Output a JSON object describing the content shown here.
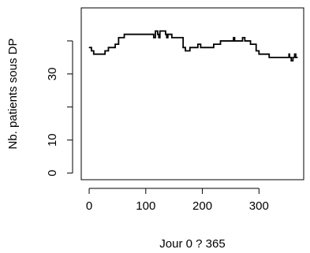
{
  "chart_data": {
    "type": "line",
    "title": "",
    "xlabel": "Jour 0 ? 365",
    "ylabel": "Nb. patients sous DP",
    "xlim": [
      -14,
      379
    ],
    "ylim": [
      -2,
      50
    ],
    "xticks": [
      0,
      100,
      200,
      300
    ],
    "yticks": [
      0,
      10,
      30
    ],
    "yticks_unlabeled": [
      20,
      40
    ],
    "grid": false,
    "series": [
      {
        "values": [
          [
            0,
            38
          ],
          [
            4,
            37
          ],
          [
            8,
            36
          ],
          [
            28,
            37
          ],
          [
            34,
            38
          ],
          [
            46,
            39
          ],
          [
            52,
            41
          ],
          [
            62,
            42
          ],
          [
            110,
            42
          ],
          [
            114,
            41
          ],
          [
            117,
            43
          ],
          [
            121,
            42
          ],
          [
            123,
            41
          ],
          [
            125,
            43
          ],
          [
            135,
            42
          ],
          [
            137,
            41
          ],
          [
            139,
            42
          ],
          [
            146,
            41
          ],
          [
            161,
            41
          ],
          [
            166,
            38
          ],
          [
            170,
            37
          ],
          [
            178,
            38
          ],
          [
            190,
            38
          ],
          [
            192,
            39
          ],
          [
            197,
            38
          ],
          [
            220,
            39
          ],
          [
            232,
            40
          ],
          [
            252,
            40
          ],
          [
            255,
            41
          ],
          [
            257,
            40
          ],
          [
            269,
            40
          ],
          [
            271,
            41
          ],
          [
            275,
            40
          ],
          [
            285,
            39
          ],
          [
            295,
            37
          ],
          [
            300,
            36
          ],
          [
            312,
            36
          ],
          [
            318,
            35
          ],
          [
            350,
            35
          ],
          [
            353,
            36
          ],
          [
            354,
            35
          ],
          [
            357,
            34
          ],
          [
            360,
            35
          ],
          [
            363,
            36
          ],
          [
            365,
            35
          ],
          [
            368,
            35
          ]
        ]
      }
    ]
  }
}
